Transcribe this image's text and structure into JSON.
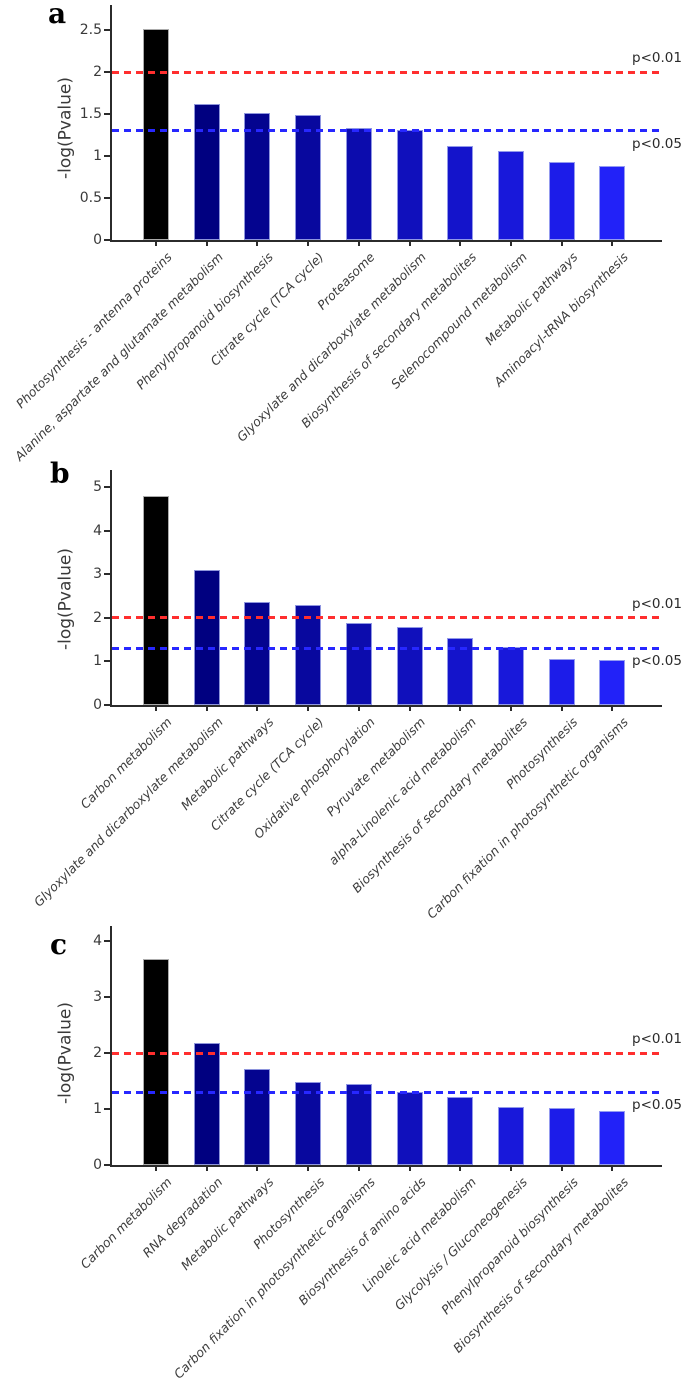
{
  "figure": {
    "type": "pathway-enrichment-figure",
    "axis_color": "#2b2b2b"
  },
  "chart_data": [
    {
      "type": "bar",
      "panel": "a",
      "ylabel": "-log(Pvalue)",
      "ylim": [
        0,
        2.8
      ],
      "yticks": [
        0,
        0.5,
        1,
        1.5,
        2,
        2.5
      ],
      "grid": false,
      "categories": [
        "Photosynthesis - antenna proteins",
        "Alanine, aspartate and glutamate metabolism",
        "Phenylpropanoid biosynthesis",
        "Citrate cycle (TCA cycle)",
        "Proteasome",
        "Glyoxylate and dicarboxylate metabolism",
        "Biosynthesis of secondary metabolites",
        "Selenocompound metabolism",
        "Metabolic pathways",
        "Aminoacyl-tRNA biosynthesis"
      ],
      "values": [
        2.51,
        1.62,
        1.51,
        1.49,
        1.33,
        1.31,
        1.12,
        1.06,
        0.93,
        0.88
      ],
      "bar_colors": [
        "#000000",
        "#000080",
        "#04048f",
        "#08089e",
        "#0c0cad",
        "#1010bc",
        "#1414cb",
        "#1818da",
        "#1c1ce9",
        "#2222f8"
      ],
      "annotations": [
        {
          "label": "p<0.01",
          "value": 2,
          "color": "#ff2e2e",
          "style": "dashed"
        },
        {
          "label": "p<0.05",
          "value": 1.3,
          "color": "#2727ff",
          "style": "dashed"
        }
      ]
    },
    {
      "type": "bar",
      "panel": "b",
      "ylabel": "-log(Pvalue)",
      "ylim": [
        0,
        5.4
      ],
      "yticks": [
        0,
        1,
        2,
        3,
        4,
        5
      ],
      "grid": false,
      "categories": [
        "Carbon metabolism",
        "Glyoxylate and dicarboxylate metabolism",
        "Metabolic pathways",
        "Citrate cycle (TCA cycle)",
        "Oxidative phosphorylation",
        "Pyruvate metabolism",
        "alpha-Linolenic acid metabolism",
        "Biosynthesis of secondary metabolites",
        "Photosynthesis",
        "Carbon fixation in photosynthetic organisms"
      ],
      "values": [
        4.8,
        3.1,
        2.36,
        2.29,
        1.87,
        1.8,
        1.53,
        1.33,
        1.05,
        1.03
      ],
      "bar_colors": [
        "#000000",
        "#000080",
        "#04048f",
        "#08089e",
        "#0c0cad",
        "#1010bc",
        "#1414cb",
        "#1818da",
        "#1c1ce9",
        "#2222f8"
      ],
      "annotations": [
        {
          "label": "p<0.01",
          "value": 2,
          "color": "#ff2e2e",
          "style": "dashed"
        },
        {
          "label": "p<0.05",
          "value": 1.3,
          "color": "#2727ff",
          "style": "dashed"
        }
      ]
    },
    {
      "type": "bar",
      "panel": "c",
      "ylabel": "-log(Pvalue)",
      "ylim": [
        0,
        4.27
      ],
      "yticks": [
        0,
        1,
        2,
        3,
        4
      ],
      "grid": false,
      "categories": [
        "Carbon metabolism",
        "RNA degradation",
        "Metabolic pathways",
        "Photosynthesis",
        "Carbon fixation in photosynthetic organisms",
        "Biosynthesis of amino acids",
        "Linoleic acid metabolism",
        "Glycolysis / Gluconeogenesis",
        "Phenylpropanoid biosynthesis",
        "Biosynthesis of secondary metabolites"
      ],
      "values": [
        3.67,
        2.17,
        1.72,
        1.48,
        1.45,
        1.31,
        1.21,
        1.03,
        1.02,
        0.96
      ],
      "bar_colors": [
        "#000000",
        "#000080",
        "#04048f",
        "#08089e",
        "#0c0cad",
        "#1010bc",
        "#1414cb",
        "#1818da",
        "#1c1ce9",
        "#2222f8"
      ],
      "annotations": [
        {
          "label": "p<0.01",
          "value": 2,
          "color": "#ff2e2e",
          "style": "dashed"
        },
        {
          "label": "p<0.05",
          "value": 1.3,
          "color": "#2727ff",
          "style": "dashed"
        }
      ]
    }
  ]
}
